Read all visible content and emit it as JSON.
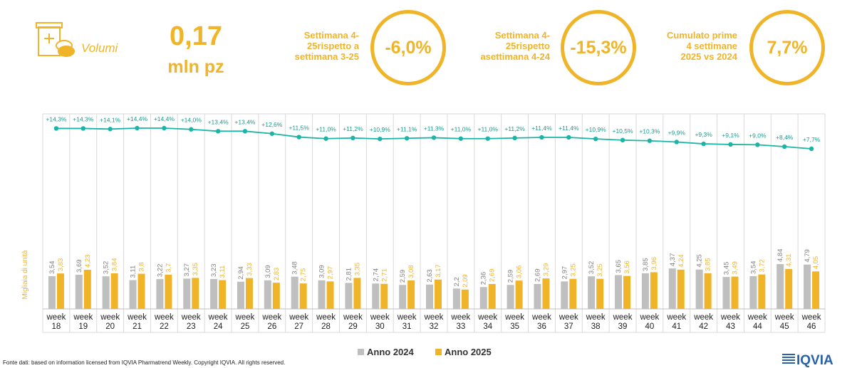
{
  "header": {
    "volumi_label": "Volumi",
    "value": "0,17",
    "unit": "mln pz",
    "icon": "pill-box-icon"
  },
  "kpis": [
    {
      "label_lines": [
        "Settimana 4-",
        "25rispetto a",
        "settimana 3-25"
      ],
      "value": "-6,0%"
    },
    {
      "label_lines": [
        "Settimana 4-",
        "25rispetto",
        "asettimana 4-24"
      ],
      "value": "-15,3%"
    },
    {
      "label_lines": [
        "Cumulato prime",
        "4 settimane",
        "2025 vs 2024"
      ],
      "value": "7,7%"
    }
  ],
  "chart_data": {
    "type": "bar",
    "ylabel": "Migliaia di unità",
    "categories": [
      [
        "week",
        "18"
      ],
      [
        "week",
        "19"
      ],
      [
        "week",
        "20"
      ],
      [
        "week",
        "21"
      ],
      [
        "week",
        "22"
      ],
      [
        "week",
        "23"
      ],
      [
        "week",
        "24"
      ],
      [
        "week",
        "25"
      ],
      [
        "week",
        "26"
      ],
      [
        "week",
        "27"
      ],
      [
        "week",
        "28"
      ],
      [
        "week",
        "29"
      ],
      [
        "week",
        "30"
      ],
      [
        "week",
        "31"
      ],
      [
        "week",
        "32"
      ],
      [
        "week",
        "33"
      ],
      [
        "week",
        "34"
      ],
      [
        "week",
        "35"
      ],
      [
        "week",
        "36"
      ],
      [
        "week",
        "37"
      ],
      [
        "week",
        "38"
      ],
      [
        "week",
        "39"
      ],
      [
        "week",
        "40"
      ],
      [
        "week",
        "41"
      ],
      [
        "week",
        "42"
      ],
      [
        "week",
        "43"
      ],
      [
        "week",
        "44"
      ],
      [
        "week",
        "45"
      ],
      [
        "week",
        "46"
      ]
    ],
    "series": [
      {
        "name": "Anno 2024",
        "color": "#bfbfbf",
        "values": [
          3.54,
          3.69,
          3.52,
          3.11,
          3.22,
          3.27,
          3.23,
          2.94,
          3.09,
          3.48,
          3.09,
          2.81,
          2.74,
          2.59,
          2.63,
          2.2,
          2.36,
          2.59,
          2.69,
          2.97,
          3.52,
          3.65,
          3.85,
          4.37,
          4.25,
          3.45,
          3.54,
          4.84,
          4.79
        ],
        "labels": [
          "3,54",
          "3,69",
          "3,52",
          "3,11",
          "3,22",
          "3,27",
          "3,23",
          "2,94",
          "3,09",
          "3,48",
          "3,09",
          "2,81",
          "2,74",
          "2,59",
          "2,63",
          "2,2",
          "2,36",
          "2,59",
          "2,69",
          "2,97",
          "3,52",
          "3,65",
          "3,85",
          "4,37",
          "4,25",
          "3,45",
          "3,54",
          "4,84",
          "4,79"
        ]
      },
      {
        "name": "Anno 2025",
        "color": "#f0b428",
        "values": [
          3.83,
          4.23,
          3.84,
          3.8,
          3.7,
          3.35,
          3.11,
          3.33,
          2.83,
          2.75,
          2.97,
          3.35,
          2.71,
          3.08,
          3.17,
          2.09,
          2.69,
          3.06,
          3.29,
          3.25,
          3.25,
          3.56,
          3.96,
          4.24,
          3.85,
          3.49,
          3.72,
          4.31,
          4.05
        ],
        "labels": [
          "3,83",
          "4,23",
          "3,84",
          "3,8",
          "3,7",
          "3,35",
          "3,11",
          "3,33",
          "2,83",
          "2,75",
          "2,97",
          "3,35",
          "2,71",
          "3,08",
          "3,17",
          "2,09",
          "2,69",
          "3,06",
          "3,29",
          "3,25",
          "3,25",
          "3,56",
          "3,96",
          "4,24",
          "3,85",
          "3,49",
          "3,72",
          "4,31",
          "4,05"
        ]
      }
    ],
    "line": {
      "color": "#1bb5a5",
      "values": [
        14.3,
        14.3,
        14.1,
        14.4,
        14.4,
        14.0,
        13.4,
        13.4,
        12.6,
        11.5,
        11.0,
        11.2,
        10.9,
        11.1,
        11.3,
        11.0,
        11.0,
        11.2,
        11.4,
        11.4,
        10.9,
        10.5,
        10.3,
        9.9,
        9.3,
        9.1,
        9.0,
        8.4,
        7.7
      ],
      "labels": [
        "+14,3%",
        "+14,3%",
        "+14,1%",
        "+14,4%",
        "+14,4%",
        "+14,0%",
        "+13,4%",
        "+13,4%",
        "+12,6%",
        "+11,5%",
        "+11,0%",
        "+11,2%",
        "+10,9%",
        "+11,1%",
        "+11,3%",
        "+11,0%",
        "+11,0%",
        "+11,2%",
        "+11,4%",
        "+11,4%",
        "+10,9%",
        "+10,5%",
        "+10,3%",
        "+9,9%",
        "+9,3%",
        "+9,1%",
        "+9,0%",
        "+8,4%",
        "+7,7%"
      ]
    },
    "legend": "bottom"
  },
  "footer": "Fonte dati: based on information licensed from IQVIA Pharmatrend Weekly. Copyright IQVIA. All rights reserved.",
  "logo": "IQVIA"
}
